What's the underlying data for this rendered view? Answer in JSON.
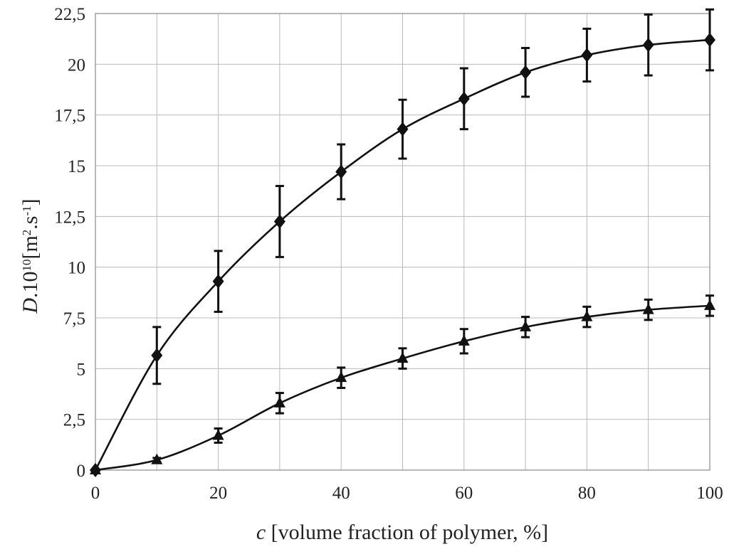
{
  "chart_data": {
    "type": "line",
    "xlabel": {
      "italic": "c",
      "text": " [volume fraction of polymer, %]"
    },
    "ylabel": {
      "italic": "D",
      "base": ".10",
      "exp": "10",
      "unit": "[m",
      "unit_exp1": "2",
      "unit_mid": ".s",
      "unit_exp2": "-1",
      "unit_end": "]"
    },
    "xlim": [
      0,
      100
    ],
    "ylim": [
      0,
      22.5
    ],
    "x_ticks": [
      0,
      20,
      40,
      60,
      80,
      100
    ],
    "x_tick_labels": [
      "0",
      "20",
      "40",
      "60",
      "80",
      "100"
    ],
    "x_gridlines": [
      0,
      10,
      20,
      30,
      40,
      50,
      60,
      70,
      80,
      90,
      100
    ],
    "y_ticks": [
      0,
      2.5,
      5,
      7.5,
      10,
      12.5,
      15,
      17.5,
      20,
      22.5
    ],
    "y_tick_labels": [
      "0",
      "2,5",
      "5",
      "7,5",
      "10",
      "12,5",
      "15",
      "17,5",
      "20",
      "22,5"
    ],
    "grid": true,
    "legend": "none",
    "series": [
      {
        "marker": "diamond",
        "x": [
          0,
          10,
          20,
          30,
          40,
          50,
          60,
          70,
          80,
          90,
          100
        ],
        "y": [
          0.0,
          5.65,
          9.3,
          12.25,
          14.7,
          16.8,
          18.3,
          19.6,
          20.45,
          20.95,
          21.2
        ],
        "error": [
          0,
          1.4,
          1.5,
          1.75,
          1.35,
          1.45,
          1.5,
          1.2,
          1.3,
          1.5,
          1.5
        ]
      },
      {
        "marker": "triangle",
        "x": [
          0,
          10,
          20,
          30,
          40,
          50,
          60,
          70,
          80,
          90,
          100
        ],
        "y": [
          0.0,
          0.5,
          1.7,
          3.3,
          4.55,
          5.5,
          6.35,
          7.05,
          7.55,
          7.9,
          8.1
        ],
        "error": [
          0,
          0.1,
          0.35,
          0.5,
          0.5,
          0.5,
          0.6,
          0.5,
          0.5,
          0.5,
          0.5
        ]
      }
    ]
  }
}
